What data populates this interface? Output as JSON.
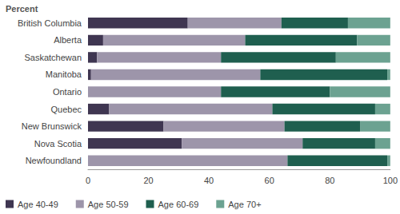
{
  "chart_data": {
    "type": "bar",
    "title": "Percent",
    "orientation": "horizontal",
    "stacked": true,
    "grid": false,
    "legend": "bottom",
    "categories": [
      "British Columbia",
      "Alberta",
      "Saskatchewan",
      "Manitoba",
      "Ontario",
      "Quebec",
      "New Brunswick",
      "Nova Scotia",
      "Newfoundland"
    ],
    "series": [
      {
        "name": "Age 40-49",
        "color": "#3f3651",
        "values": [
          33,
          5,
          3,
          1,
          0,
          7,
          25,
          31,
          0
        ]
      },
      {
        "name": "Age 50-59",
        "color": "#9d95aa",
        "values": [
          31,
          47,
          41,
          56,
          44,
          54,
          40,
          40,
          66
        ]
      },
      {
        "name": "Age 60-69",
        "color": "#1f5f4f",
        "values": [
          22,
          37,
          38,
          42,
          36,
          34,
          25,
          24,
          33
        ]
      },
      {
        "name": "Age 70+",
        "color": "#6ca291",
        "values": [
          14,
          11,
          18,
          1,
          20,
          5,
          10,
          5,
          1
        ]
      }
    ],
    "xlim": [
      0,
      100
    ],
    "xticks": [
      0,
      20,
      40,
      60,
      80,
      100
    ]
  }
}
